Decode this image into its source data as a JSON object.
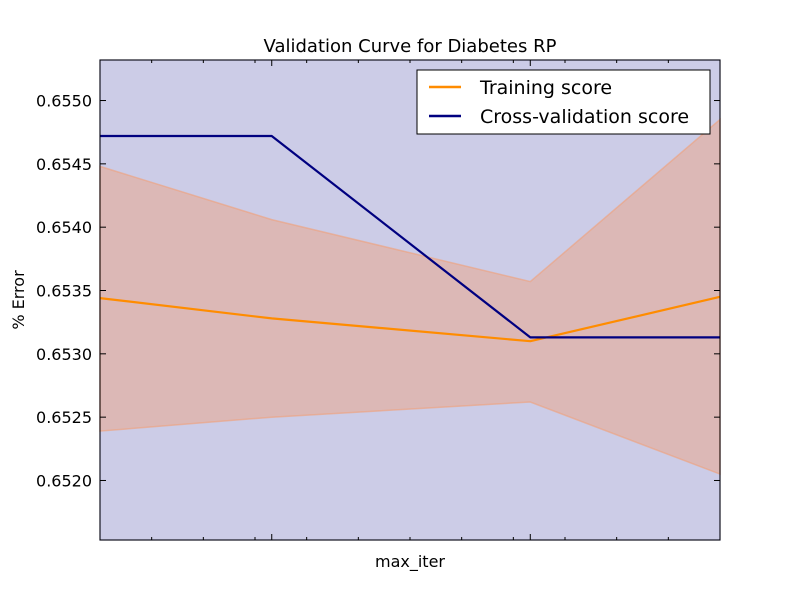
{
  "chart_data": {
    "type": "line",
    "title": "Validation Curve for Diabetes RP",
    "xlabel": "max_iter",
    "ylabel": "% Error",
    "x": [
      0,
      0.277,
      0.694,
      1.0
    ],
    "xlim": [
      0,
      1
    ],
    "ylim": [
      0.65153,
      0.65532
    ],
    "yticks": [
      "0.6520",
      "0.6525",
      "0.6530",
      "0.6535",
      "0.6540",
      "0.6545",
      "0.6550"
    ],
    "grid": false,
    "legend": "upper-right",
    "series": [
      {
        "name": "Training score",
        "color": "#ff8c00",
        "values": [
          0.65344,
          0.65328,
          0.6531,
          0.65345
        ],
        "band_upper": [
          0.65448,
          0.65406,
          0.65357,
          0.65485
        ],
        "band_lower": [
          0.65239,
          0.6525,
          0.65262,
          0.65205
        ],
        "band_color": "#f0a07a"
      },
      {
        "name": "Cross-validation score",
        "color": "#000080",
        "values": [
          0.65472,
          0.65472,
          0.65313,
          0.65313
        ],
        "band_upper": [
          0.65532,
          0.65532,
          0.65532,
          0.65532
        ],
        "band_lower": [
          0.65153,
          0.65153,
          0.65153,
          0.65153
        ],
        "band_color": "#9a9ad0"
      }
    ]
  }
}
